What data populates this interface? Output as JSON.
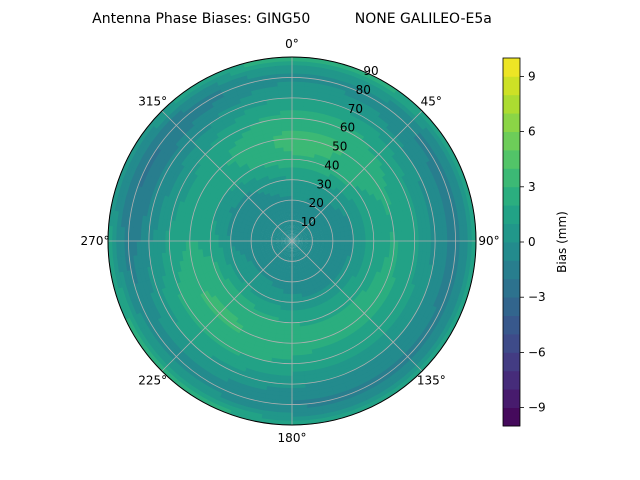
{
  "chart_data": {
    "type": "heatmap",
    "title": "Antenna Phase Biases: GING50          NONE GALILEO-E5a",
    "projection": "polar",
    "theta_ticks": [
      {
        "deg": 0,
        "label": "0°"
      },
      {
        "deg": 45,
        "label": "45°"
      },
      {
        "deg": 90,
        "label": "90°"
      },
      {
        "deg": 135,
        "label": "135°"
      },
      {
        "deg": 180,
        "label": "180°"
      },
      {
        "deg": 225,
        "label": "225°"
      },
      {
        "deg": 270,
        "label": "270°"
      },
      {
        "deg": 315,
        "label": "315°"
      }
    ],
    "radial_ticks": [
      10,
      20,
      30,
      40,
      50,
      60,
      70,
      80,
      90
    ],
    "radial_range": [
      0,
      90
    ],
    "grid": true,
    "colorbar": {
      "label": "Bias (mm)",
      "range": [
        -10,
        10
      ],
      "ticks": [
        -9,
        -6,
        -3,
        0,
        3,
        6,
        9
      ],
      "tick_labels": [
        "−9",
        "−6",
        "−3",
        "0",
        "3",
        "6",
        "9"
      ],
      "colormap": "viridis",
      "levels": 20
    },
    "zenith_profile": {
      "zenith_deg": [
        0,
        10,
        20,
        30,
        40,
        50,
        60,
        70,
        80,
        85,
        90
      ],
      "bias_mm": [
        0.0,
        -0.5,
        -0.5,
        0.3,
        2.0,
        2.5,
        1.7,
        0.2,
        -1.2,
        0.0,
        2.0
      ]
    },
    "azimuth_modulation": {
      "description_amplitude_mm": 1.0
    }
  }
}
